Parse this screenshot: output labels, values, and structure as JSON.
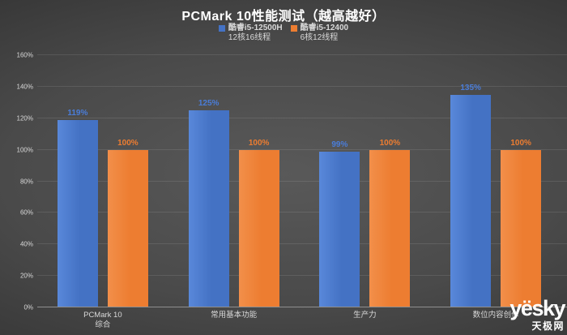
{
  "title": "PCMark 10性能测试（越高越好）",
  "legend": [
    {
      "label": "酷睿i5-12500H",
      "sublabel": "12核16线程",
      "color": "#4472C4"
    },
    {
      "label": "酷睿i5-12400",
      "sublabel": "6核12线程",
      "color": "#ED7D31"
    }
  ],
  "watermark": {
    "logo": "yësky",
    "site": "天极网"
  },
  "chart_data": {
    "type": "bar",
    "title": "PCMark 10性能测试（越高越好）",
    "categories": [
      "PCMark 10\n综合",
      "常用基本功能",
      "生产力",
      "数位内容创作"
    ],
    "series": [
      {
        "name": "酷睿i5-12500H",
        "subtitle": "12核16线程",
        "color": "#4472C4",
        "color_light": "#5988DA",
        "label_color": "#4A7DD9",
        "values": [
          119,
          125,
          99,
          135
        ],
        "labels": [
          "119%",
          "125%",
          "99%",
          "135%"
        ]
      },
      {
        "name": "酷睿i5-12400",
        "subtitle": "6核12线程",
        "color": "#ED7D31",
        "color_light": "#F28F4A",
        "label_color": "#ED7D31",
        "values": [
          100,
          100,
          100,
          100
        ],
        "labels": [
          "100%",
          "100%",
          "100%",
          "100%"
        ]
      }
    ],
    "ylim": [
      0,
      160
    ],
    "yticks": [
      0,
      20,
      40,
      60,
      80,
      100,
      120,
      140,
      160
    ],
    "ytick_labels": [
      "0%",
      "20%",
      "40%",
      "60%",
      "80%",
      "100%",
      "120%",
      "140%",
      "160%"
    ],
    "grid": true,
    "legend_position": "top",
    "background": "dark-gray-gradient"
  }
}
